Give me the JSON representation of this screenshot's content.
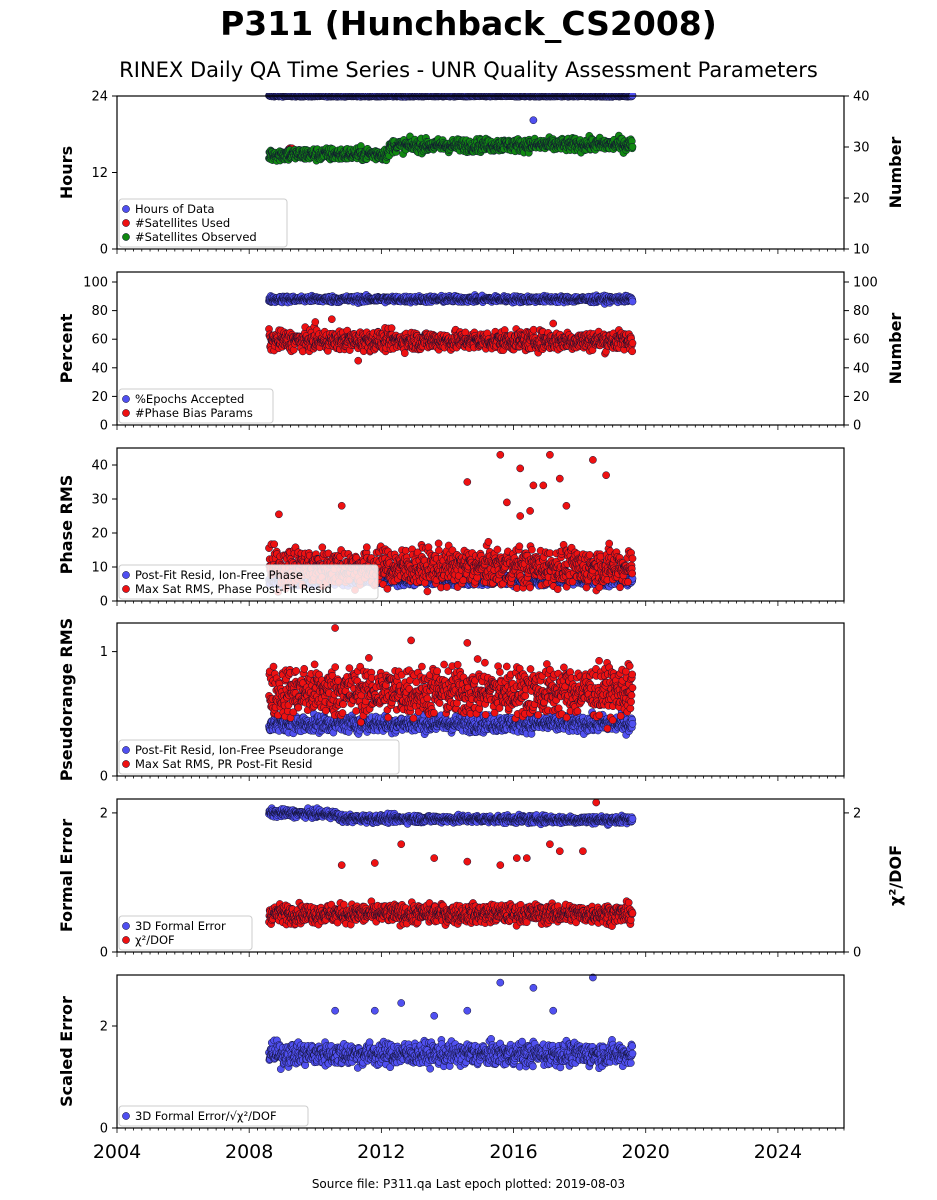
{
  "title": "P311 (Hunchback_CS2008)",
  "subtitle": "RINEX Daily QA Time Series - UNR Quality Assessment Parameters",
  "source_note": "Source file: P311.qa Last epoch plotted: 2019-08-03",
  "colors": {
    "blue": "#5050f0",
    "red": "#ee1111",
    "green": "#118811",
    "dark": "#111133"
  },
  "chart_data": [
    {
      "type": "scatter",
      "ylabel": "Hours",
      "y2label": "Number",
      "ylim": [
        0,
        24
      ],
      "yticks": [
        0,
        12,
        24
      ],
      "y2lim": [
        10,
        40
      ],
      "y2ticks": [
        10,
        20,
        30,
        40
      ],
      "legend": [
        "Hours of Data",
        "#Satellites Used",
        "#Satellites Observed"
      ],
      "series": [
        {
          "name": "Hours of Data",
          "color": "blue",
          "x_range": [
            2008.6,
            2019.6
          ],
          "center": 24,
          "spread": 0.1,
          "outliers": [
            [
              2016.6,
              20.2
            ]
          ]
        },
        {
          "name": "#Satellites Used",
          "color": "red",
          "x_range": [
            2009.2,
            2009.3
          ],
          "center": 15.7,
          "spread": 0.1,
          "outliers": [
            [
              2009.3,
              15.8
            ]
          ]
        },
        {
          "name": "#Satellites Observed",
          "color": "green",
          "x_range": [
            2008.6,
            2019.6
          ],
          "center": 15.6,
          "spread": 0.9,
          "trend": [
            [
              2008.6,
              14.8
            ],
            [
              2012.2,
              14.9
            ],
            [
              2012.3,
              16.2
            ],
            [
              2019.6,
              16.4
            ]
          ]
        }
      ]
    },
    {
      "type": "scatter",
      "ylabel": "Percent",
      "y2label": "Number",
      "ylim": [
        0,
        107
      ],
      "yticks": [
        0,
        20,
        40,
        60,
        80,
        100
      ],
      "y2ticks": [
        0,
        20,
        40,
        60,
        80,
        100
      ],
      "legend": [
        "%Epochs Accepted",
        "#Phase Bias Params"
      ],
      "series": [
        {
          "name": "%Epochs Accepted",
          "color": "blue",
          "x_range": [
            2008.6,
            2019.6
          ],
          "center": 88,
          "spread": 2
        },
        {
          "name": "#Phase Bias Params",
          "color": "red",
          "x_range": [
            2008.6,
            2019.6
          ],
          "center": 59,
          "spread": 6,
          "outliers": [
            [
              2010.0,
              72
            ],
            [
              2010.5,
              74
            ],
            [
              2011.3,
              45
            ],
            [
              2017.2,
              71
            ]
          ]
        }
      ]
    },
    {
      "type": "scatter",
      "ylabel": "Phase RMS",
      "ylim": [
        0,
        45
      ],
      "yticks": [
        0,
        10,
        20,
        30,
        40
      ],
      "legend": [
        "Post-Fit Resid, Ion-Free Phase",
        "Max Sat RMS, Phase Post-Fit Resid"
      ],
      "series": [
        {
          "name": "Post-Fit Resid, Ion-Free Phase",
          "color": "blue",
          "x_range": [
            2008.6,
            2019.6
          ],
          "center": 6,
          "spread": 1.2
        },
        {
          "name": "Max Sat RMS, Phase Post-Fit Resid",
          "color": "red",
          "x_range": [
            2008.6,
            2019.6
          ],
          "center": 10,
          "spread": 5,
          "outliers": [
            [
              2008.9,
              25.5
            ],
            [
              2010.8,
              28
            ],
            [
              2014.6,
              35
            ],
            [
              2015.6,
              43
            ],
            [
              2016.2,
              39
            ],
            [
              2016.6,
              34
            ],
            [
              2016.9,
              34
            ],
            [
              2017.1,
              43
            ],
            [
              2017.4,
              36
            ],
            [
              2017.6,
              28
            ],
            [
              2018.4,
              41.5
            ],
            [
              2018.8,
              37
            ],
            [
              2016.2,
              25
            ],
            [
              2016.5,
              26.5
            ],
            [
              2015.8,
              29
            ]
          ]
        }
      ]
    },
    {
      "type": "scatter",
      "ylabel": "Pseudorange RMS",
      "ylim": [
        0,
        1.23
      ],
      "yticks": [
        0,
        1
      ],
      "legend": [
        "Post-Fit Resid, Ion-Free Pseudorange",
        "Max Sat RMS, PR Post-Fit Resid"
      ],
      "series": [
        {
          "name": "Post-Fit Resid, Ion-Free Pseudorange",
          "color": "blue",
          "x_range": [
            2008.6,
            2019.6
          ],
          "center": 0.42,
          "spread": 0.06
        },
        {
          "name": "Max Sat RMS, PR Post-Fit Resid",
          "color": "red",
          "x_range": [
            2008.6,
            2019.6
          ],
          "center": 0.68,
          "spread": 0.18,
          "outliers": [
            [
              2010.6,
              1.19
            ],
            [
              2012.9,
              1.09
            ],
            [
              2014.6,
              1.07
            ],
            [
              2019.4,
              0.84
            ]
          ]
        }
      ]
    },
    {
      "type": "scatter",
      "ylabel": "Formal Error",
      "y2label": "χ²/DOF",
      "ylim": [
        0,
        2.2
      ],
      "yticks": [
        0,
        2
      ],
      "y2ticks": [
        0,
        2
      ],
      "legend": [
        "3D Formal Error",
        "χ²/DOF"
      ],
      "series": [
        {
          "name": "3D Formal Error",
          "color": "blue",
          "x_range": [
            2008.6,
            2019.6
          ],
          "center": 1.93,
          "spread": 0.05,
          "trend": [
            [
              2008.6,
              2.0
            ],
            [
              2010.6,
              1.98
            ],
            [
              2010.8,
              1.92
            ],
            [
              2019.6,
              1.9
            ]
          ]
        },
        {
          "name": "χ²/DOF",
          "color": "red",
          "x_range": [
            2008.6,
            2019.6
          ],
          "center": 0.55,
          "spread": 0.12,
          "outliers": [
            [
              2010.8,
              1.25
            ],
            [
              2011.8,
              1.28
            ],
            [
              2012.6,
              1.55
            ],
            [
              2013.6,
              1.35
            ],
            [
              2014.6,
              1.3
            ],
            [
              2015.6,
              1.25
            ],
            [
              2016.1,
              1.35
            ],
            [
              2016.4,
              1.35
            ],
            [
              2017.1,
              1.55
            ],
            [
              2017.4,
              1.45
            ],
            [
              2018.1,
              1.45
            ],
            [
              2018.5,
              2.15
            ]
          ]
        }
      ]
    },
    {
      "type": "scatter",
      "ylabel": "Scaled Error",
      "ylim": [
        0,
        3
      ],
      "yticks": [
        0,
        2
      ],
      "legend": [
        "3D Formal Error/√χ²/DOF"
      ],
      "series": [
        {
          "name": "3D Formal Error/√χ²/DOF",
          "color": "blue",
          "x_range": [
            2008.6,
            2019.6
          ],
          "center": 1.45,
          "spread": 0.2,
          "outliers": [
            [
              2010.6,
              2.3
            ],
            [
              2011.8,
              2.3
            ],
            [
              2012.6,
              2.45
            ],
            [
              2015.6,
              2.85
            ],
            [
              2016.6,
              2.75
            ],
            [
              2018.4,
              2.95
            ],
            [
              2014.6,
              2.3
            ],
            [
              2017.2,
              2.3
            ],
            [
              2013.6,
              2.2
            ]
          ]
        }
      ]
    }
  ],
  "x_axis": {
    "xlim": [
      2004,
      2026
    ],
    "xticks": [
      2004,
      2008,
      2012,
      2016,
      2020,
      2024
    ]
  }
}
